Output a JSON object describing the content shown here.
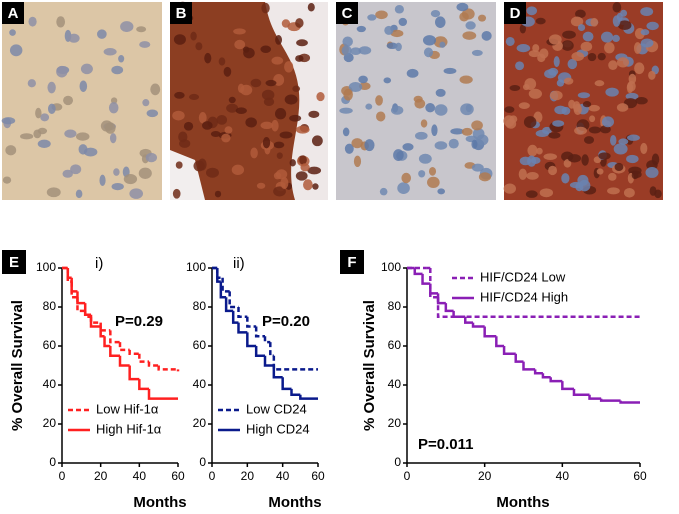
{
  "image_panels": [
    {
      "label": "A"
    },
    {
      "label": "B"
    },
    {
      "label": "C"
    },
    {
      "label": "D"
    }
  ],
  "chart_data": [
    {
      "type": "step",
      "panel_label": "E",
      "annotation": "i)",
      "p_value": "P=0.29",
      "xlabel": "Months",
      "ylabel": "% Overall Survival",
      "xlim": [
        0,
        60
      ],
      "ylim": [
        0,
        100
      ],
      "xticks": [
        0,
        20,
        40,
        60
      ],
      "yticks": [
        0,
        20,
        40,
        60,
        80,
        100
      ],
      "legend": "lower left",
      "series": [
        {
          "name": "Low Hif-1α",
          "color": "#ff2020",
          "line_style": "dashed",
          "x": [
            0,
            3,
            5,
            8,
            12,
            15,
            20,
            25,
            30,
            35,
            40,
            45,
            50,
            60
          ],
          "values": [
            100,
            93,
            85,
            78,
            75,
            72,
            68,
            62,
            58,
            56,
            52,
            50,
            48,
            47
          ]
        },
        {
          "name": "High Hif-1α",
          "color": "#ff2020",
          "line_style": "solid",
          "x": [
            0,
            3,
            5,
            8,
            12,
            15,
            20,
            22,
            25,
            30,
            35,
            40,
            45,
            60
          ],
          "values": [
            100,
            95,
            88,
            82,
            76,
            70,
            65,
            60,
            55,
            50,
            43,
            38,
            33,
            33
          ]
        }
      ]
    },
    {
      "type": "step",
      "annotation": "ii)",
      "p_value": "P=0.20",
      "xlabel": "Months",
      "xlim": [
        0,
        60
      ],
      "ylim": [
        0,
        100
      ],
      "xticks": [
        0,
        20,
        40,
        60
      ],
      "yticks": [
        0,
        20,
        40,
        60,
        80,
        100
      ],
      "legend": "lower left",
      "series": [
        {
          "name": "Low CD24",
          "color": "#0a1a8c",
          "line_style": "dashed",
          "x": [
            0,
            3,
            6,
            10,
            15,
            20,
            25,
            30,
            33,
            35,
            60
          ],
          "values": [
            100,
            95,
            88,
            80,
            75,
            70,
            65,
            62,
            55,
            48,
            48
          ]
        },
        {
          "name": "High CD24",
          "color": "#0a1a8c",
          "line_style": "solid",
          "x": [
            0,
            3,
            5,
            8,
            12,
            15,
            20,
            25,
            30,
            35,
            40,
            45,
            50,
            60
          ],
          "values": [
            100,
            93,
            85,
            78,
            72,
            67,
            60,
            55,
            50,
            44,
            38,
            35,
            33,
            33
          ]
        }
      ]
    },
    {
      "type": "step",
      "panel_label": "F",
      "p_value": "P=0.011",
      "xlabel": "Months",
      "ylabel": "% Overall Survival",
      "xlim": [
        0,
        60
      ],
      "ylim": [
        0,
        100
      ],
      "xticks": [
        0,
        20,
        40,
        60
      ],
      "yticks": [
        0,
        20,
        40,
        60,
        80,
        100
      ],
      "legend": "upper right",
      "series": [
        {
          "name": "HIF/CD24 Low",
          "color": "#8a1fb5",
          "line_style": "dashed",
          "x": [
            0,
            5,
            6,
            8,
            60
          ],
          "values": [
            100,
            100,
            85,
            75,
            75
          ]
        },
        {
          "name": "HIF/CD24 High",
          "color": "#8a1fb5",
          "line_style": "solid",
          "x": [
            0,
            2,
            4,
            6,
            8,
            10,
            12,
            15,
            17,
            20,
            23,
            25,
            28,
            30,
            33,
            35,
            37,
            40,
            43,
            47,
            50,
            55,
            60
          ],
          "values": [
            100,
            97,
            92,
            87,
            82,
            78,
            75,
            72,
            70,
            65,
            60,
            56,
            52,
            48,
            46,
            44,
            42,
            38,
            35,
            33,
            32,
            31,
            31
          ]
        }
      ]
    }
  ]
}
